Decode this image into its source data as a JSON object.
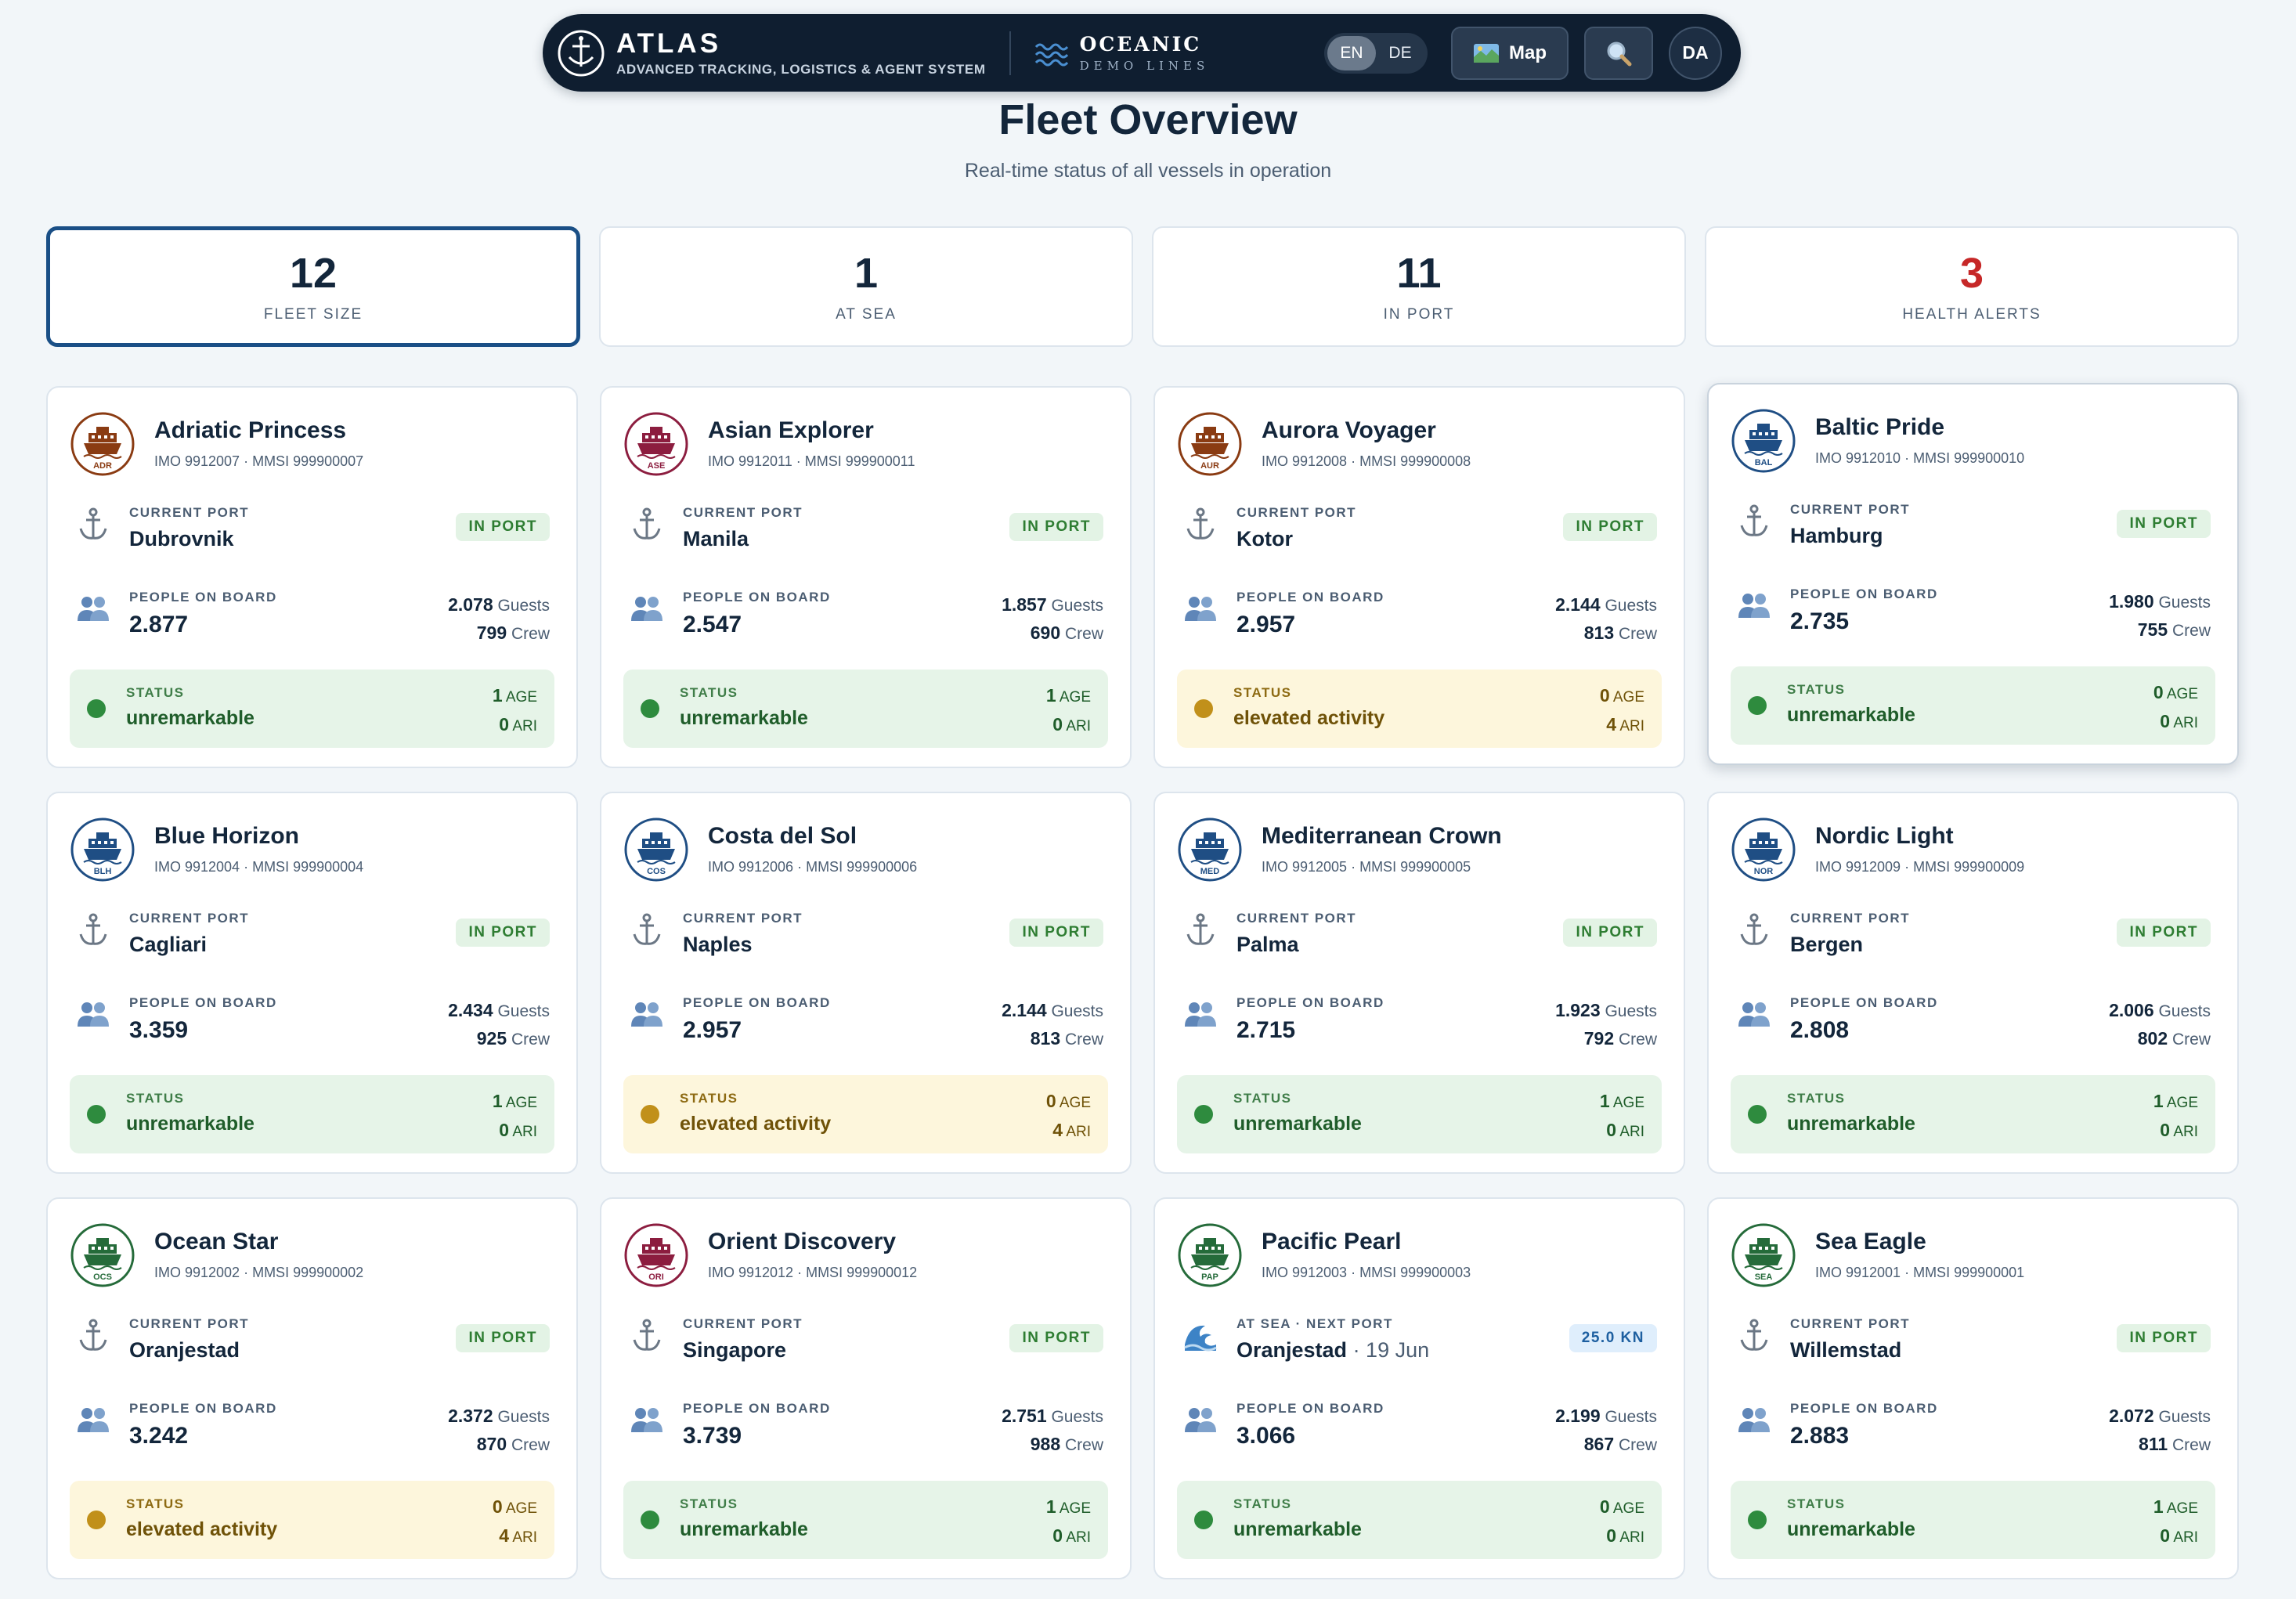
{
  "nav": {
    "brand_name": "ATLAS",
    "brand_sub": "ADVANCED TRACKING, LOGISTICS & AGENT SYSTEM",
    "partner_name": "OCEANIC",
    "partner_sub": "DEMO LINES",
    "lang_en": "EN",
    "lang_de": "DE",
    "active_lang": "EN",
    "map_label": "Map",
    "avatar_initials": "DA"
  },
  "header": {
    "title": "Fleet Overview",
    "subtitle": "Real-time status of all vessels in operation"
  },
  "stats": [
    {
      "value": "12",
      "label": "FLEET SIZE"
    },
    {
      "value": "1",
      "label": "AT SEA"
    },
    {
      "value": "11",
      "label": "IN PORT"
    },
    {
      "value": "3",
      "label": "HEALTH ALERTS"
    }
  ],
  "labels": {
    "current_port": "CURRENT PORT",
    "at_sea_next_port": "AT SEA · NEXT PORT",
    "people_on_board": "PEOPLE ON BOARD",
    "status": "STATUS",
    "in_port": "IN PORT",
    "guests": "Guests",
    "crew": "Crew",
    "age": "AGE",
    "ari": "ARI"
  },
  "colors": {
    "brown": "#8a3b12",
    "crimson": "#8c1d3f",
    "navy": "#1f4e84",
    "green": "#256b3a"
  },
  "vessels": [
    {
      "name": "Adriatic Princess",
      "ids": "IMO 9912007 · MMSI 999900007",
      "code": "ADR",
      "color": "brown",
      "port": "Dubrovnik",
      "eta": "",
      "state": "IN PORT",
      "people": "2.877",
      "guests": "2.078",
      "crew": "799",
      "status": "unremarkable",
      "level": "ok",
      "age": "1",
      "ari": "0"
    },
    {
      "name": "Asian Explorer",
      "ids": "IMO 9912011 · MMSI 999900011",
      "code": "ASE",
      "color": "crimson",
      "port": "Manila",
      "eta": "",
      "state": "IN PORT",
      "people": "2.547",
      "guests": "1.857",
      "crew": "690",
      "status": "unremarkable",
      "level": "ok",
      "age": "1",
      "ari": "0"
    },
    {
      "name": "Aurora Voyager",
      "ids": "IMO 9912008 · MMSI 999900008",
      "code": "AUR",
      "color": "brown",
      "port": "Kotor",
      "eta": "",
      "state": "IN PORT",
      "people": "2.957",
      "guests": "2.144",
      "crew": "813",
      "status": "elevated activity",
      "level": "warn",
      "age": "0",
      "ari": "4"
    },
    {
      "name": "Baltic Pride",
      "ids": "IMO 9912010 · MMSI 999900010",
      "code": "BAL",
      "color": "navy",
      "port": "Hamburg",
      "eta": "",
      "state": "IN PORT",
      "people": "2.735",
      "guests": "1.980",
      "crew": "755",
      "status": "unremarkable",
      "level": "ok",
      "age": "0",
      "ari": "0"
    },
    {
      "name": "Blue Horizon",
      "ids": "IMO 9912004 · MMSI 999900004",
      "code": "BLH",
      "color": "navy",
      "port": "Cagliari",
      "eta": "",
      "state": "IN PORT",
      "people": "3.359",
      "guests": "2.434",
      "crew": "925",
      "status": "unremarkable",
      "level": "ok",
      "age": "1",
      "ari": "0"
    },
    {
      "name": "Costa del Sol",
      "ids": "IMO 9912006 · MMSI 999900006",
      "code": "COS",
      "color": "navy",
      "port": "Naples",
      "eta": "",
      "state": "IN PORT",
      "people": "2.957",
      "guests": "2.144",
      "crew": "813",
      "status": "elevated activity",
      "level": "warn",
      "age": "0",
      "ari": "4"
    },
    {
      "name": "Mediterranean Crown",
      "ids": "IMO 9912005 · MMSI 999900005",
      "code": "MED",
      "color": "navy",
      "port": "Palma",
      "eta": "",
      "state": "IN PORT",
      "people": "2.715",
      "guests": "1.923",
      "crew": "792",
      "status": "unremarkable",
      "level": "ok",
      "age": "1",
      "ari": "0"
    },
    {
      "name": "Nordic Light",
      "ids": "IMO 9912009 · MMSI 999900009",
      "code": "NOR",
      "color": "navy",
      "port": "Bergen",
      "eta": "",
      "state": "IN PORT",
      "people": "2.808",
      "guests": "2.006",
      "crew": "802",
      "status": "unremarkable",
      "level": "ok",
      "age": "1",
      "ari": "0"
    },
    {
      "name": "Ocean Star",
      "ids": "IMO 9912002 · MMSI 999900002",
      "code": "OCS",
      "color": "green",
      "port": "Oranjestad",
      "eta": "",
      "state": "IN PORT",
      "people": "3.242",
      "guests": "2.372",
      "crew": "870",
      "status": "elevated activity",
      "level": "warn",
      "age": "0",
      "ari": "4"
    },
    {
      "name": "Orient Discovery",
      "ids": "IMO 9912012 · MMSI 999900012",
      "code": "ORI",
      "color": "crimson",
      "port": "Singapore",
      "eta": "",
      "state": "IN PORT",
      "people": "3.739",
      "guests": "2.751",
      "crew": "988",
      "status": "unremarkable",
      "level": "ok",
      "age": "1",
      "ari": "0"
    },
    {
      "name": "Pacific Pearl",
      "ids": "IMO 9912003 · MMSI 999900003",
      "code": "PAP",
      "color": "green",
      "port": "Oranjestad",
      "eta": " · 19 Jun",
      "state": "25.0 KN",
      "people": "3.066",
      "guests": "2.199",
      "crew": "867",
      "status": "unremarkable",
      "level": "ok",
      "age": "0",
      "ari": "0"
    },
    {
      "name": "Sea Eagle",
      "ids": "IMO 9912001 · MMSI 999900001",
      "code": "SEA",
      "color": "green",
      "port": "Willemstad",
      "eta": "",
      "state": "IN PORT",
      "people": "2.883",
      "guests": "2.072",
      "crew": "811",
      "status": "unremarkable",
      "level": "ok",
      "age": "1",
      "ari": "0"
    }
  ]
}
